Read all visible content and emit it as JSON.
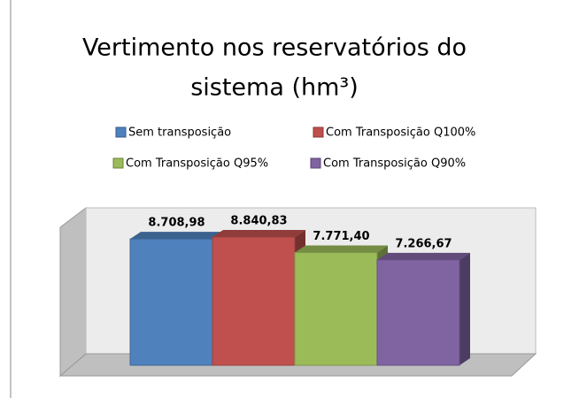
{
  "chart_data": {
    "type": "bar3d",
    "title": "Vertimento nos reservatórios do sistema (hm³)",
    "title_lines": [
      "Vertimento nos reservatórios do",
      "sistema (hm³)"
    ],
    "series": [
      {
        "name": "Sem transposição",
        "color": "#4f81bd",
        "values": [
          8708.98
        ],
        "value_labels": [
          "8.708,98"
        ]
      },
      {
        "name": "Com Transposição Q100%",
        "color": "#c0504d",
        "values": [
          8840.83
        ],
        "value_labels": [
          "8.840,83"
        ]
      },
      {
        "name": "Com Transposição Q95%",
        "color": "#9bbb59",
        "values": [
          7771.4
        ],
        "value_labels": [
          "7.771,40"
        ]
      },
      {
        "name": "Com Transposição Q90%",
        "color": "#8064a2",
        "values": [
          7266.67
        ],
        "value_labels": [
          "7.266,67"
        ]
      }
    ]
  }
}
